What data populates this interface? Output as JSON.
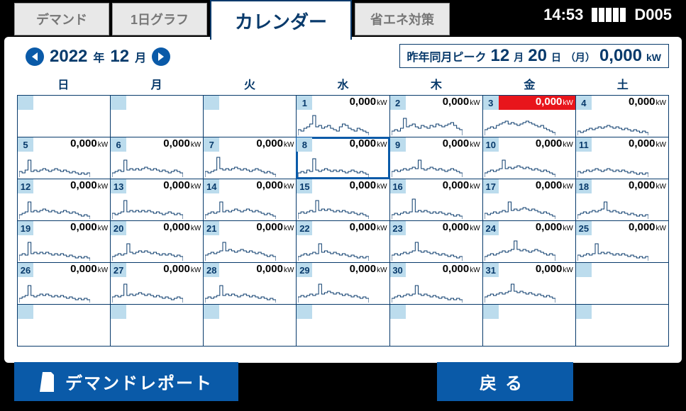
{
  "status": {
    "time": "14:53",
    "code": "D005"
  },
  "tabs": {
    "demand": "デマンド",
    "oneday": "1日グラフ",
    "calendar": "カレンダー",
    "energy": "省エネ対策",
    "active_index": 2
  },
  "date_nav": {
    "year": "2022",
    "year_suffix": "年",
    "month": "12",
    "month_suffix": "月"
  },
  "peak": {
    "label": "昨年同月ピーク",
    "month": "12",
    "month_suffix": "月",
    "day": "20",
    "day_suffix": "日",
    "dow": "（月）",
    "value": "0,000",
    "unit": "kW"
  },
  "weekdays": [
    "日",
    "月",
    "火",
    "水",
    "木",
    "金",
    "土"
  ],
  "colors": {
    "accent": "#0a5aa8",
    "dark": "#083a6b",
    "cell_day_bg": "#bcdced",
    "alert_bg": "#e8151b",
    "tab_inactive_bg": "#e8e8e8",
    "tab_inactive_fg": "#777777",
    "bg": "#000000",
    "panel_bg": "#ffffff"
  },
  "cells": [
    {
      "blank": true
    },
    {
      "blank": true
    },
    {
      "blank": true
    },
    {
      "day": 1,
      "value": "0,000",
      "unit": "kW",
      "spark": [
        4,
        3,
        5,
        6,
        8,
        14,
        6,
        7,
        5,
        6,
        7,
        5,
        4,
        3,
        6,
        8,
        7,
        5,
        4,
        3,
        5,
        4,
        3,
        2
      ]
    },
    {
      "day": 2,
      "value": "0,000",
      "unit": "kW",
      "spark": [
        3,
        4,
        3,
        5,
        12,
        6,
        7,
        8,
        6,
        5,
        7,
        6,
        5,
        7,
        6,
        8,
        7,
        6,
        7,
        8,
        9,
        7,
        5,
        4
      ]
    },
    {
      "day": 3,
      "value": "0,000",
      "unit": "kW",
      "alert": true,
      "spark": [
        4,
        5,
        6,
        5,
        7,
        8,
        9,
        10,
        8,
        9,
        8,
        7,
        8,
        9,
        10,
        9,
        8,
        7,
        6,
        7,
        5,
        4,
        3,
        2
      ]
    },
    {
      "day": 4,
      "value": "0,000",
      "unit": "kW",
      "spark": [
        3,
        2,
        3,
        4,
        5,
        4,
        5,
        6,
        5,
        6,
        7,
        6,
        5,
        6,
        5,
        4,
        5,
        4,
        3,
        4,
        3,
        2,
        3,
        2
      ]
    },
    {
      "day": 5,
      "value": "0,000",
      "unit": "kW",
      "spark": [
        4,
        3,
        5,
        12,
        4,
        5,
        4,
        5,
        6,
        5,
        4,
        5,
        6,
        5,
        4,
        5,
        4,
        3,
        4,
        3,
        2,
        3,
        2,
        3
      ]
    },
    {
      "day": 6,
      "value": "0,000",
      "unit": "kW",
      "spark": [
        3,
        4,
        5,
        4,
        12,
        5,
        6,
        5,
        6,
        5,
        6,
        7,
        6,
        5,
        6,
        5,
        4,
        5,
        4,
        3,
        4,
        5,
        4,
        3
      ]
    },
    {
      "day": 7,
      "value": "0,000",
      "unit": "kW",
      "spark": [
        4,
        3,
        4,
        5,
        14,
        6,
        5,
        6,
        5,
        6,
        7,
        6,
        5,
        6,
        5,
        4,
        5,
        6,
        5,
        4,
        3,
        4,
        3,
        2
      ]
    },
    {
      "day": 8,
      "value": "0,000",
      "unit": "kW",
      "selected": true,
      "spark": [
        3,
        4,
        3,
        5,
        4,
        13,
        5,
        4,
        5,
        6,
        5,
        4,
        5,
        4,
        5,
        4,
        3,
        4,
        5,
        4,
        3,
        4,
        3,
        2
      ]
    },
    {
      "day": 9,
      "value": "0,000",
      "unit": "kW",
      "spark": [
        4,
        5,
        4,
        5,
        6,
        5,
        6,
        7,
        6,
        12,
        6,
        5,
        6,
        7,
        6,
        5,
        6,
        5,
        4,
        5,
        6,
        5,
        4,
        3
      ]
    },
    {
      "day": 10,
      "value": "0,000",
      "unit": "kW",
      "spark": [
        3,
        4,
        5,
        4,
        5,
        6,
        12,
        6,
        7,
        6,
        7,
        8,
        7,
        6,
        7,
        6,
        5,
        6,
        5,
        4,
        5,
        4,
        3,
        2
      ]
    },
    {
      "day": 11,
      "value": "0,000",
      "unit": "kW",
      "spark": [
        4,
        3,
        4,
        5,
        4,
        5,
        6,
        5,
        4,
        5,
        6,
        5,
        4,
        5,
        4,
        5,
        4,
        3,
        4,
        3,
        2,
        3,
        2,
        3
      ]
    },
    {
      "day": 12,
      "value": "0,000",
      "unit": "kW",
      "spark": [
        3,
        4,
        5,
        12,
        5,
        6,
        5,
        6,
        7,
        6,
        5,
        6,
        5,
        4,
        5,
        6,
        5,
        4,
        5,
        4,
        3,
        2,
        3,
        2
      ]
    },
    {
      "day": 13,
      "value": "0,000",
      "unit": "kW",
      "spark": [
        4,
        3,
        4,
        5,
        13,
        5,
        6,
        5,
        6,
        5,
        6,
        5,
        6,
        5,
        4,
        5,
        4,
        3,
        4,
        5,
        4,
        3,
        4,
        3
      ]
    },
    {
      "day": 14,
      "value": "0,000",
      "unit": "kW",
      "spark": [
        3,
        4,
        5,
        4,
        5,
        12,
        5,
        6,
        5,
        6,
        7,
        6,
        5,
        6,
        7,
        6,
        5,
        6,
        5,
        4,
        3,
        4,
        3,
        2
      ]
    },
    {
      "day": 15,
      "value": "0,000",
      "unit": "kW",
      "spark": [
        4,
        5,
        4,
        5,
        6,
        5,
        13,
        6,
        7,
        6,
        7,
        6,
        5,
        6,
        5,
        6,
        5,
        4,
        5,
        4,
        3,
        4,
        3,
        2
      ]
    },
    {
      "day": 16,
      "value": "0,000",
      "unit": "kW",
      "spark": [
        3,
        4,
        3,
        4,
        5,
        4,
        5,
        14,
        5,
        6,
        5,
        6,
        5,
        4,
        5,
        4,
        5,
        4,
        3,
        4,
        3,
        2,
        3,
        2
      ]
    },
    {
      "day": 17,
      "value": "0,000",
      "unit": "kW",
      "spark": [
        4,
        3,
        4,
        5,
        4,
        5,
        6,
        5,
        12,
        6,
        7,
        6,
        7,
        8,
        7,
        6,
        7,
        6,
        5,
        4,
        5,
        4,
        3,
        2
      ]
    },
    {
      "day": 18,
      "value": "0,000",
      "unit": "kW",
      "spark": [
        3,
        4,
        5,
        4,
        5,
        6,
        5,
        6,
        7,
        12,
        6,
        5,
        6,
        5,
        4,
        5,
        4,
        3,
        4,
        3,
        2,
        3,
        2,
        3
      ]
    },
    {
      "day": 19,
      "value": "0,000",
      "unit": "kW",
      "spark": [
        4,
        5,
        4,
        13,
        5,
        6,
        5,
        6,
        5,
        6,
        5,
        4,
        5,
        4,
        5,
        4,
        3,
        4,
        3,
        2,
        3,
        2,
        3,
        2
      ]
    },
    {
      "day": 20,
      "value": "0,000",
      "unit": "kW",
      "spark": [
        3,
        4,
        5,
        4,
        5,
        12,
        6,
        5,
        6,
        7,
        6,
        7,
        6,
        5,
        6,
        5,
        4,
        5,
        4,
        5,
        4,
        3,
        4,
        3
      ]
    },
    {
      "day": 21,
      "value": "0,000",
      "unit": "kW",
      "spark": [
        4,
        5,
        6,
        5,
        6,
        7,
        13,
        7,
        8,
        7,
        6,
        7,
        8,
        7,
        6,
        7,
        6,
        5,
        6,
        5,
        4,
        3,
        4,
        3
      ]
    },
    {
      "day": 22,
      "value": "0,000",
      "unit": "kW",
      "spark": [
        3,
        4,
        5,
        4,
        5,
        6,
        5,
        12,
        6,
        7,
        6,
        5,
        6,
        5,
        4,
        5,
        4,
        3,
        4,
        3,
        2,
        3,
        2,
        3
      ]
    },
    {
      "day": 23,
      "value": "0,000",
      "unit": "kW",
      "spark": [
        4,
        5,
        4,
        5,
        6,
        5,
        6,
        7,
        13,
        7,
        6,
        7,
        6,
        5,
        6,
        5,
        4,
        5,
        4,
        3,
        4,
        3,
        2,
        3
      ]
    },
    {
      "day": 24,
      "value": "0,000",
      "unit": "kW",
      "spark": [
        3,
        4,
        5,
        4,
        5,
        6,
        7,
        6,
        7,
        8,
        14,
        8,
        7,
        8,
        7,
        6,
        7,
        8,
        7,
        6,
        5,
        4,
        5,
        4
      ]
    },
    {
      "day": 25,
      "value": "0,000",
      "unit": "kW",
      "spark": [
        4,
        3,
        4,
        5,
        4,
        5,
        12,
        5,
        6,
        5,
        6,
        5,
        4,
        5,
        4,
        5,
        4,
        3,
        4,
        3,
        2,
        3,
        2,
        3
      ]
    },
    {
      "day": 26,
      "value": "0,000",
      "unit": "kW",
      "spark": [
        3,
        4,
        5,
        12,
        5,
        4,
        5,
        6,
        5,
        6,
        5,
        4,
        5,
        4,
        5,
        4,
        3,
        4,
        3,
        2,
        3,
        2,
        3,
        2
      ]
    },
    {
      "day": 27,
      "value": "0,000",
      "unit": "kW",
      "spark": [
        4,
        5,
        4,
        5,
        13,
        5,
        6,
        5,
        6,
        7,
        6,
        5,
        6,
        5,
        4,
        5,
        4,
        3,
        4,
        3,
        2,
        3,
        4,
        3
      ]
    },
    {
      "day": 28,
      "value": "0,000",
      "unit": "kW",
      "spark": [
        3,
        4,
        3,
        4,
        5,
        12,
        5,
        6,
        5,
        6,
        5,
        4,
        5,
        6,
        5,
        4,
        5,
        4,
        3,
        4,
        3,
        2,
        3,
        2
      ]
    },
    {
      "day": 29,
      "value": "0,000",
      "unit": "kW",
      "spark": [
        4,
        5,
        4,
        5,
        6,
        5,
        6,
        13,
        6,
        7,
        8,
        7,
        6,
        7,
        6,
        5,
        6,
        5,
        4,
        5,
        4,
        3,
        4,
        3
      ]
    },
    {
      "day": 30,
      "value": "0,000",
      "unit": "kW",
      "spark": [
        3,
        4,
        5,
        4,
        5,
        6,
        5,
        6,
        12,
        6,
        5,
        6,
        5,
        4,
        5,
        4,
        3,
        4,
        3,
        2,
        3,
        2,
        3,
        2
      ]
    },
    {
      "day": 31,
      "value": "0,000",
      "unit": "kW",
      "spark": [
        4,
        5,
        6,
        5,
        6,
        7,
        6,
        7,
        8,
        13,
        8,
        7,
        8,
        7,
        6,
        7,
        6,
        5,
        6,
        5,
        4,
        5,
        4,
        3
      ]
    },
    {
      "blank": true
    },
    {
      "blank": true
    },
    {
      "blank": true
    },
    {
      "blank": true
    },
    {
      "blank": true
    },
    {
      "blank": true
    },
    {
      "blank": true
    },
    {
      "blank": true
    }
  ],
  "buttons": {
    "report": "デマンドレポート",
    "back": "戻る"
  },
  "spark_style": {
    "stroke": "#083a6b",
    "stroke_width": 1,
    "height": 32,
    "max": 16
  }
}
